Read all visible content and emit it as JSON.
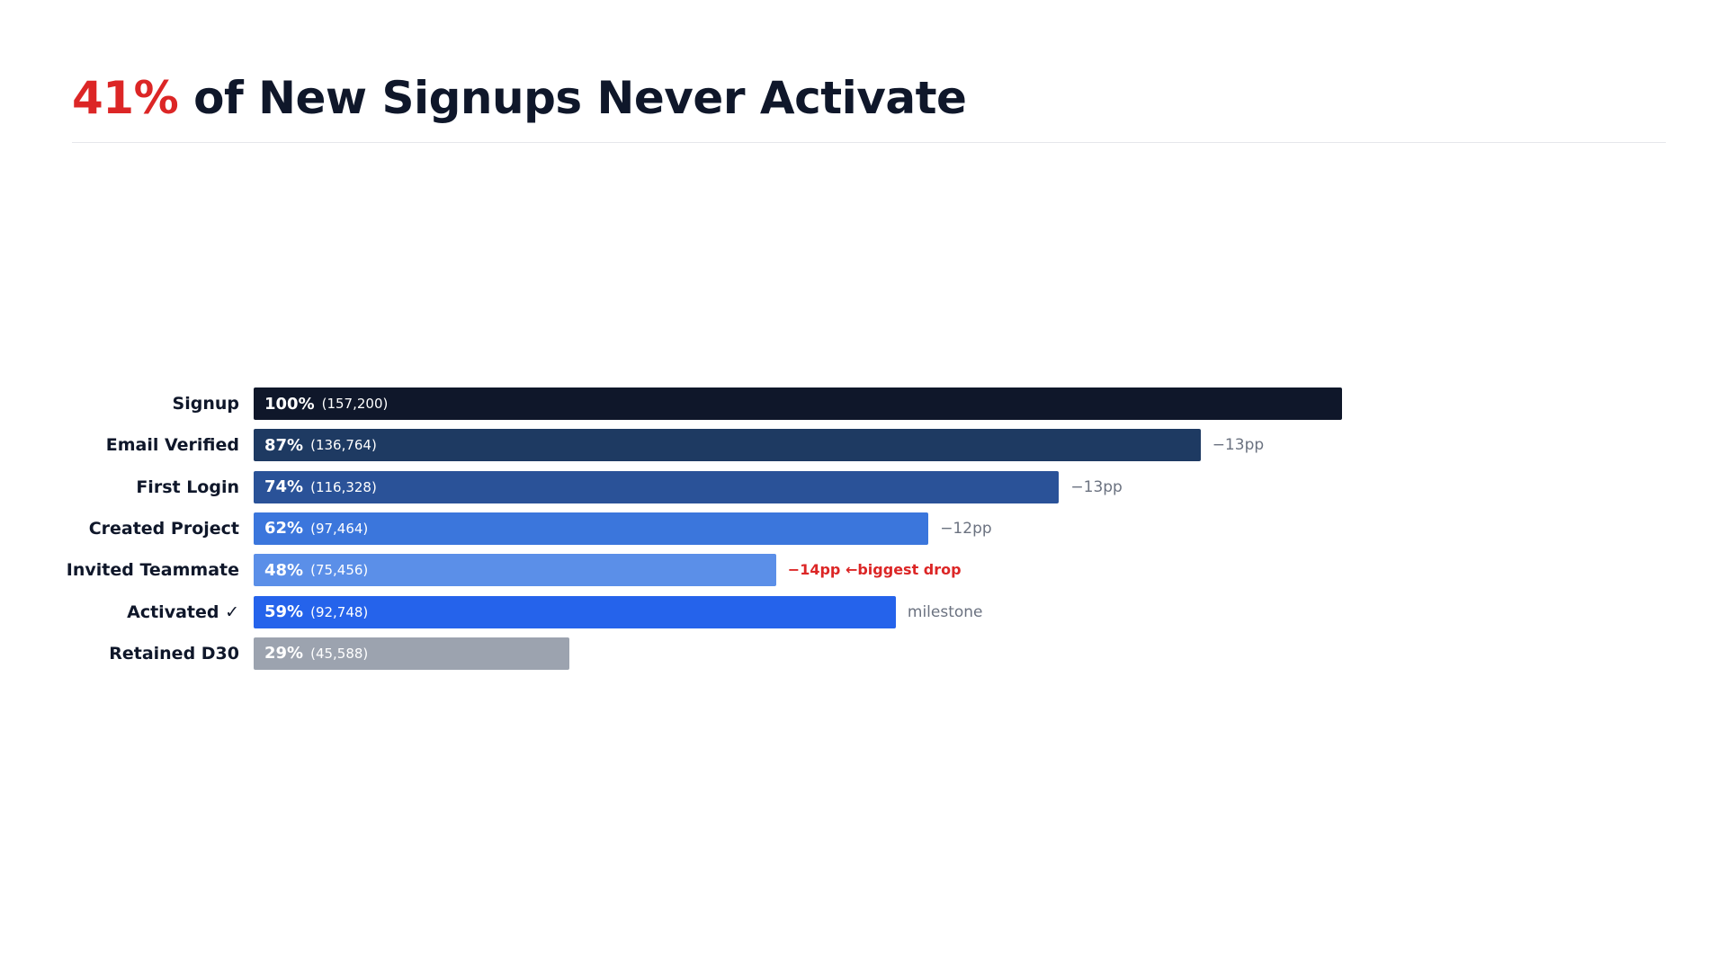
{
  "header": {
    "title_accent": "41%",
    "title_rest": " of New Signups Never Activate"
  },
  "colors": {
    "accent": "#dc2626",
    "text": "#0f172a",
    "muted": "#6b7280"
  },
  "chart_data": {
    "type": "bar",
    "orientation": "horizontal",
    "title": "41% of New Signups Never Activate",
    "xlim": [
      0,
      100
    ],
    "grid": false,
    "legend": "none",
    "categories": [
      "Signup",
      "Email Verified",
      "First Login",
      "Created Project",
      "Invited Teammate",
      "Activated ✓",
      "Retained D30"
    ],
    "values": [
      100,
      87,
      74,
      62,
      48,
      59,
      29
    ],
    "bars": [
      {
        "stage": "Signup",
        "value": 100,
        "pct_label": "100%",
        "count_label": "(157,200)",
        "note": "",
        "color": "#0f172a",
        "note_highlight": false
      },
      {
        "stage": "Email Verified",
        "value": 87,
        "pct_label": "87%",
        "count_label": "(136,764)",
        "note": "−13pp",
        "color": "#1e3a62",
        "note_highlight": false
      },
      {
        "stage": "First Login",
        "value": 74,
        "pct_label": "74%",
        "count_label": "(116,328)",
        "note": "−13pp",
        "color": "#2a5298",
        "note_highlight": false
      },
      {
        "stage": "Created Project",
        "value": 62,
        "pct_label": "62%",
        "count_label": "(97,464)",
        "note": "−12pp",
        "color": "#3b76dc",
        "note_highlight": false
      },
      {
        "stage": "Invited Teammate",
        "value": 48,
        "pct_label": "48%",
        "count_label": "(75,456)",
        "note": "−14pp ←biggest drop",
        "color": "#5b8fe8",
        "note_highlight": true
      },
      {
        "stage": "Activated ✓",
        "value": 59,
        "pct_label": "59%",
        "count_label": "(92,748)",
        "note": "milestone",
        "color": "#2563eb",
        "note_highlight": false
      },
      {
        "stage": "Retained D30",
        "value": 29,
        "pct_label": "29%",
        "count_label": "(45,588)",
        "note": "",
        "color": "#9ca3af",
        "note_highlight": false
      }
    ]
  }
}
